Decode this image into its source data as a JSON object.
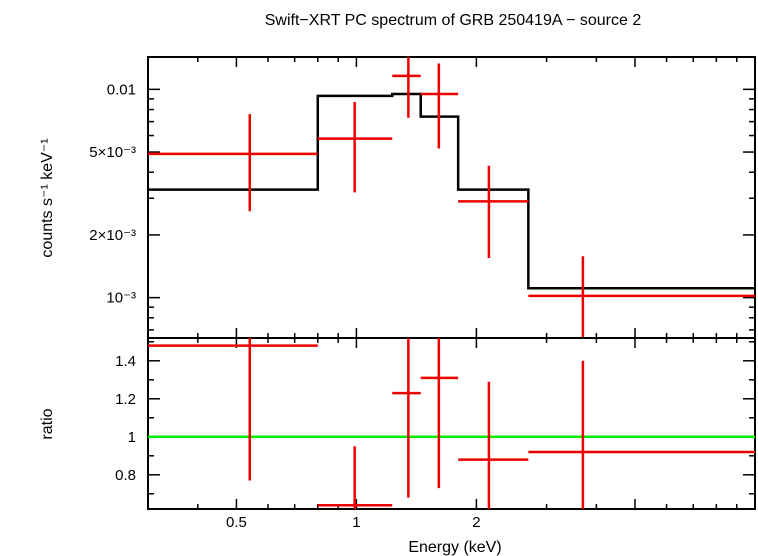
{
  "title": "Swift−XRT PC spectrum of GRB 250419A − source 2",
  "chart_data": [
    {
      "panel": "spectrum",
      "type": "scatter",
      "ylabel": "counts s⁻¹ keV⁻¹",
      "y_scale": "log",
      "xlim": [
        0.3,
        10
      ],
      "ylim": [
        0.00064,
        0.0143
      ],
      "x_scale": "log",
      "yticks": [
        {
          "value": 0.01,
          "label": "0.01"
        },
        {
          "value": 0.005,
          "label": "5×10⁻³"
        },
        {
          "value": 0.002,
          "label": "2×10⁻³"
        },
        {
          "value": 0.001,
          "label": "10⁻³"
        }
      ],
      "points": [
        {
          "x": 0.54,
          "xlo": 0.3,
          "xhi": 0.8,
          "y": 0.0049,
          "ylo": 0.0026,
          "yhi": 0.0076
        },
        {
          "x": 0.99,
          "xlo": 0.8,
          "xhi": 1.23,
          "y": 0.0058,
          "ylo": 0.0032,
          "yhi": 0.0087
        },
        {
          "x": 1.35,
          "xlo": 1.23,
          "xhi": 1.45,
          "y": 0.0116,
          "ylo": 0.0073,
          "yhi": 0.0165
        },
        {
          "x": 1.61,
          "xlo": 1.45,
          "xhi": 1.8,
          "y": 0.0095,
          "ylo": 0.0052,
          "yhi": 0.0133
        },
        {
          "x": 2.15,
          "xlo": 1.8,
          "xhi": 2.7,
          "y": 0.0029,
          "ylo": 0.00155,
          "yhi": 0.0043
        },
        {
          "x": 3.7,
          "xlo": 2.7,
          "xhi": 10,
          "y": 0.00102,
          "ylo": 0.0006,
          "yhi": 0.00158
        }
      ],
      "model_steps": [
        {
          "xlo": 0.3,
          "xhi": 0.8,
          "y": 0.0033
        },
        {
          "xlo": 0.8,
          "xhi": 1.23,
          "y": 0.0093
        },
        {
          "xlo": 1.23,
          "xhi": 1.45,
          "y": 0.0095
        },
        {
          "xlo": 1.45,
          "xhi": 1.8,
          "y": 0.0074
        },
        {
          "xlo": 1.8,
          "xhi": 2.7,
          "y": 0.0033
        },
        {
          "xlo": 2.7,
          "xhi": 10,
          "y": 0.00111
        }
      ]
    },
    {
      "panel": "ratio",
      "type": "scatter",
      "xlabel": "Energy (keV)",
      "ylabel": "ratio",
      "y_scale": "linear",
      "xlim": [
        0.3,
        10
      ],
      "ylim": [
        0.62,
        1.52
      ],
      "x_scale": "log",
      "xticks": [
        {
          "value": 0.5,
          "label": "0.5"
        },
        {
          "value": 1,
          "label": "1"
        },
        {
          "value": 2,
          "label": "2"
        }
      ],
      "yticks": [
        {
          "value": 1.4,
          "label": "1.4"
        },
        {
          "value": 1.2,
          "label": "1.2"
        },
        {
          "value": 1,
          "label": "1"
        },
        {
          "value": 0.8,
          "label": "0.8"
        }
      ],
      "reference_line": 1,
      "points": [
        {
          "x": 0.54,
          "xlo": 0.3,
          "xhi": 0.8,
          "y": 1.48,
          "ylo": 0.77,
          "yhi": 1.52
        },
        {
          "x": 0.99,
          "xlo": 0.8,
          "xhi": 1.23,
          "y": 0.64,
          "ylo": 0.62,
          "yhi": 0.95
        },
        {
          "x": 1.35,
          "xlo": 1.23,
          "xhi": 1.45,
          "y": 1.23,
          "ylo": 0.68,
          "yhi": 1.52
        },
        {
          "x": 1.61,
          "xlo": 1.45,
          "xhi": 1.8,
          "y": 1.31,
          "ylo": 0.73,
          "yhi": 1.52
        },
        {
          "x": 2.15,
          "xlo": 1.8,
          "xhi": 2.7,
          "y": 0.88,
          "ylo": 0.62,
          "yhi": 1.29
        },
        {
          "x": 3.7,
          "xlo": 2.7,
          "xhi": 10,
          "y": 0.92,
          "ylo": 0.62,
          "yhi": 1.4
        }
      ]
    }
  ],
  "colors": {
    "data": "#ee0000",
    "model": "#000000",
    "reference": "#00ee00",
    "frame": "#000000"
  }
}
